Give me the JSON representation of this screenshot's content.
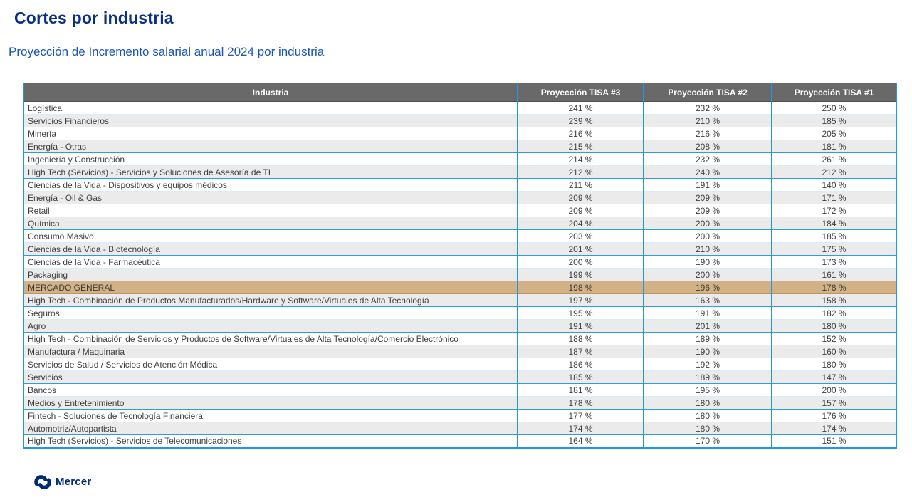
{
  "page": {
    "title": "Cortes por industria",
    "subtitle": "Proyección de Incremento salarial anual 2024 por industria"
  },
  "chart_data": {
    "type": "table",
    "title": "Cortes por industria",
    "subtitle": "Proyección de Incremento salarial anual 2024 por industria",
    "columns": [
      "Industria",
      "Proyección TISA #3",
      "Proyección TISA #2",
      "Proyección TISA #1"
    ],
    "highlighted_row": "MERCADO GENERAL",
    "rows": [
      {
        "industry": "Logística",
        "values": [
          "241 %",
          "232 %",
          "250 %"
        ],
        "highlight": false
      },
      {
        "industry": "Servicios Financieros",
        "values": [
          "239 %",
          "210 %",
          "185 %"
        ],
        "highlight": false
      },
      {
        "industry": "Minería",
        "values": [
          "216 %",
          "216 %",
          "205 %"
        ],
        "highlight": false
      },
      {
        "industry": "Energía - Otras",
        "values": [
          "215 %",
          "208 %",
          "181 %"
        ],
        "highlight": false
      },
      {
        "industry": "Ingeniería y Construcción",
        "values": [
          "214 %",
          "232 %",
          "261 %"
        ],
        "highlight": false
      },
      {
        "industry": "High Tech (Servicios) - Servicios y Soluciones de Asesoría de TI",
        "values": [
          "212 %",
          "240 %",
          "212 %"
        ],
        "highlight": false
      },
      {
        "industry": "Ciencias de la Vida - Dispositivos y equipos médicos",
        "values": [
          "211 %",
          "191 %",
          "140 %"
        ],
        "highlight": false
      },
      {
        "industry": "Energía - Oil & Gas",
        "values": [
          "209 %",
          "209 %",
          "171 %"
        ],
        "highlight": false
      },
      {
        "industry": "Retail",
        "values": [
          "209 %",
          "209 %",
          "172 %"
        ],
        "highlight": false
      },
      {
        "industry": "Química",
        "values": [
          "204 %",
          "200 %",
          "184 %"
        ],
        "highlight": false
      },
      {
        "industry": "Consumo Masivo",
        "values": [
          "203 %",
          "200 %",
          "185 %"
        ],
        "highlight": false
      },
      {
        "industry": "Ciencias de la Vida - Biotecnología",
        "values": [
          "201 %",
          "210 %",
          "175 %"
        ],
        "highlight": false
      },
      {
        "industry": "Ciencias de la Vida - Farmacéutica",
        "values": [
          "200 %",
          "190 %",
          "173 %"
        ],
        "highlight": false
      },
      {
        "industry": "Packaging",
        "values": [
          "199 %",
          "200 %",
          "161 %"
        ],
        "highlight": false
      },
      {
        "industry": "MERCADO GENERAL",
        "values": [
          "198 %",
          "196 %",
          "178 %"
        ],
        "highlight": true
      },
      {
        "industry": "High Tech - Combinación de Productos Manufacturados/Hardware y Software/Virtuales de Alta Tecnología",
        "values": [
          "197 %",
          "163 %",
          "158 %"
        ],
        "highlight": false
      },
      {
        "industry": "Seguros",
        "values": [
          "195 %",
          "191 %",
          "182 %"
        ],
        "highlight": false
      },
      {
        "industry": "Agro",
        "values": [
          "191 %",
          "201 %",
          "180 %"
        ],
        "highlight": false
      },
      {
        "industry": "High Tech - Combinación de Servicios y Productos de Software/Virtuales de Alta Tecnología/Comercio Electrónico",
        "values": [
          "188 %",
          "189 %",
          "152 %"
        ],
        "highlight": false
      },
      {
        "industry": "Manufactura / Maquinaria",
        "values": [
          "187 %",
          "190 %",
          "160 %"
        ],
        "highlight": false
      },
      {
        "industry": "Servicios de Salud / Servicios de Atención Médica",
        "values": [
          "186 %",
          "192 %",
          "180 %"
        ],
        "highlight": false
      },
      {
        "industry": "Servicios",
        "values": [
          "185 %",
          "189 %",
          "147 %"
        ],
        "highlight": false
      },
      {
        "industry": "Bancos",
        "values": [
          "181 %",
          "195 %",
          "200 %"
        ],
        "highlight": false
      },
      {
        "industry": "Medios y Entretenimiento",
        "values": [
          "178 %",
          "180 %",
          "157 %"
        ],
        "highlight": false
      },
      {
        "industry": "Fintech - Soluciones de Tecnología Financiera",
        "values": [
          "177 %",
          "180 %",
          "176 %"
        ],
        "highlight": false
      },
      {
        "industry": "Automotriz/Autopartista",
        "values": [
          "174 %",
          "180 %",
          "174 %"
        ],
        "highlight": false
      },
      {
        "industry": "High Tech (Servicios) - Servicios de Telecomunicaciones",
        "values": [
          "164 %",
          "170 %",
          "151 %"
        ],
        "highlight": false
      }
    ]
  },
  "footer": {
    "logo_text": "Mercer"
  },
  "colors": {
    "title": "#0b2e87",
    "subtitle": "#1b55b5",
    "header_bg": "#696969",
    "column_border": "#2196e8",
    "row_stripe": "#ebebeb",
    "highlight_bg": "#d1b185",
    "logo_blue": "#002c77"
  }
}
